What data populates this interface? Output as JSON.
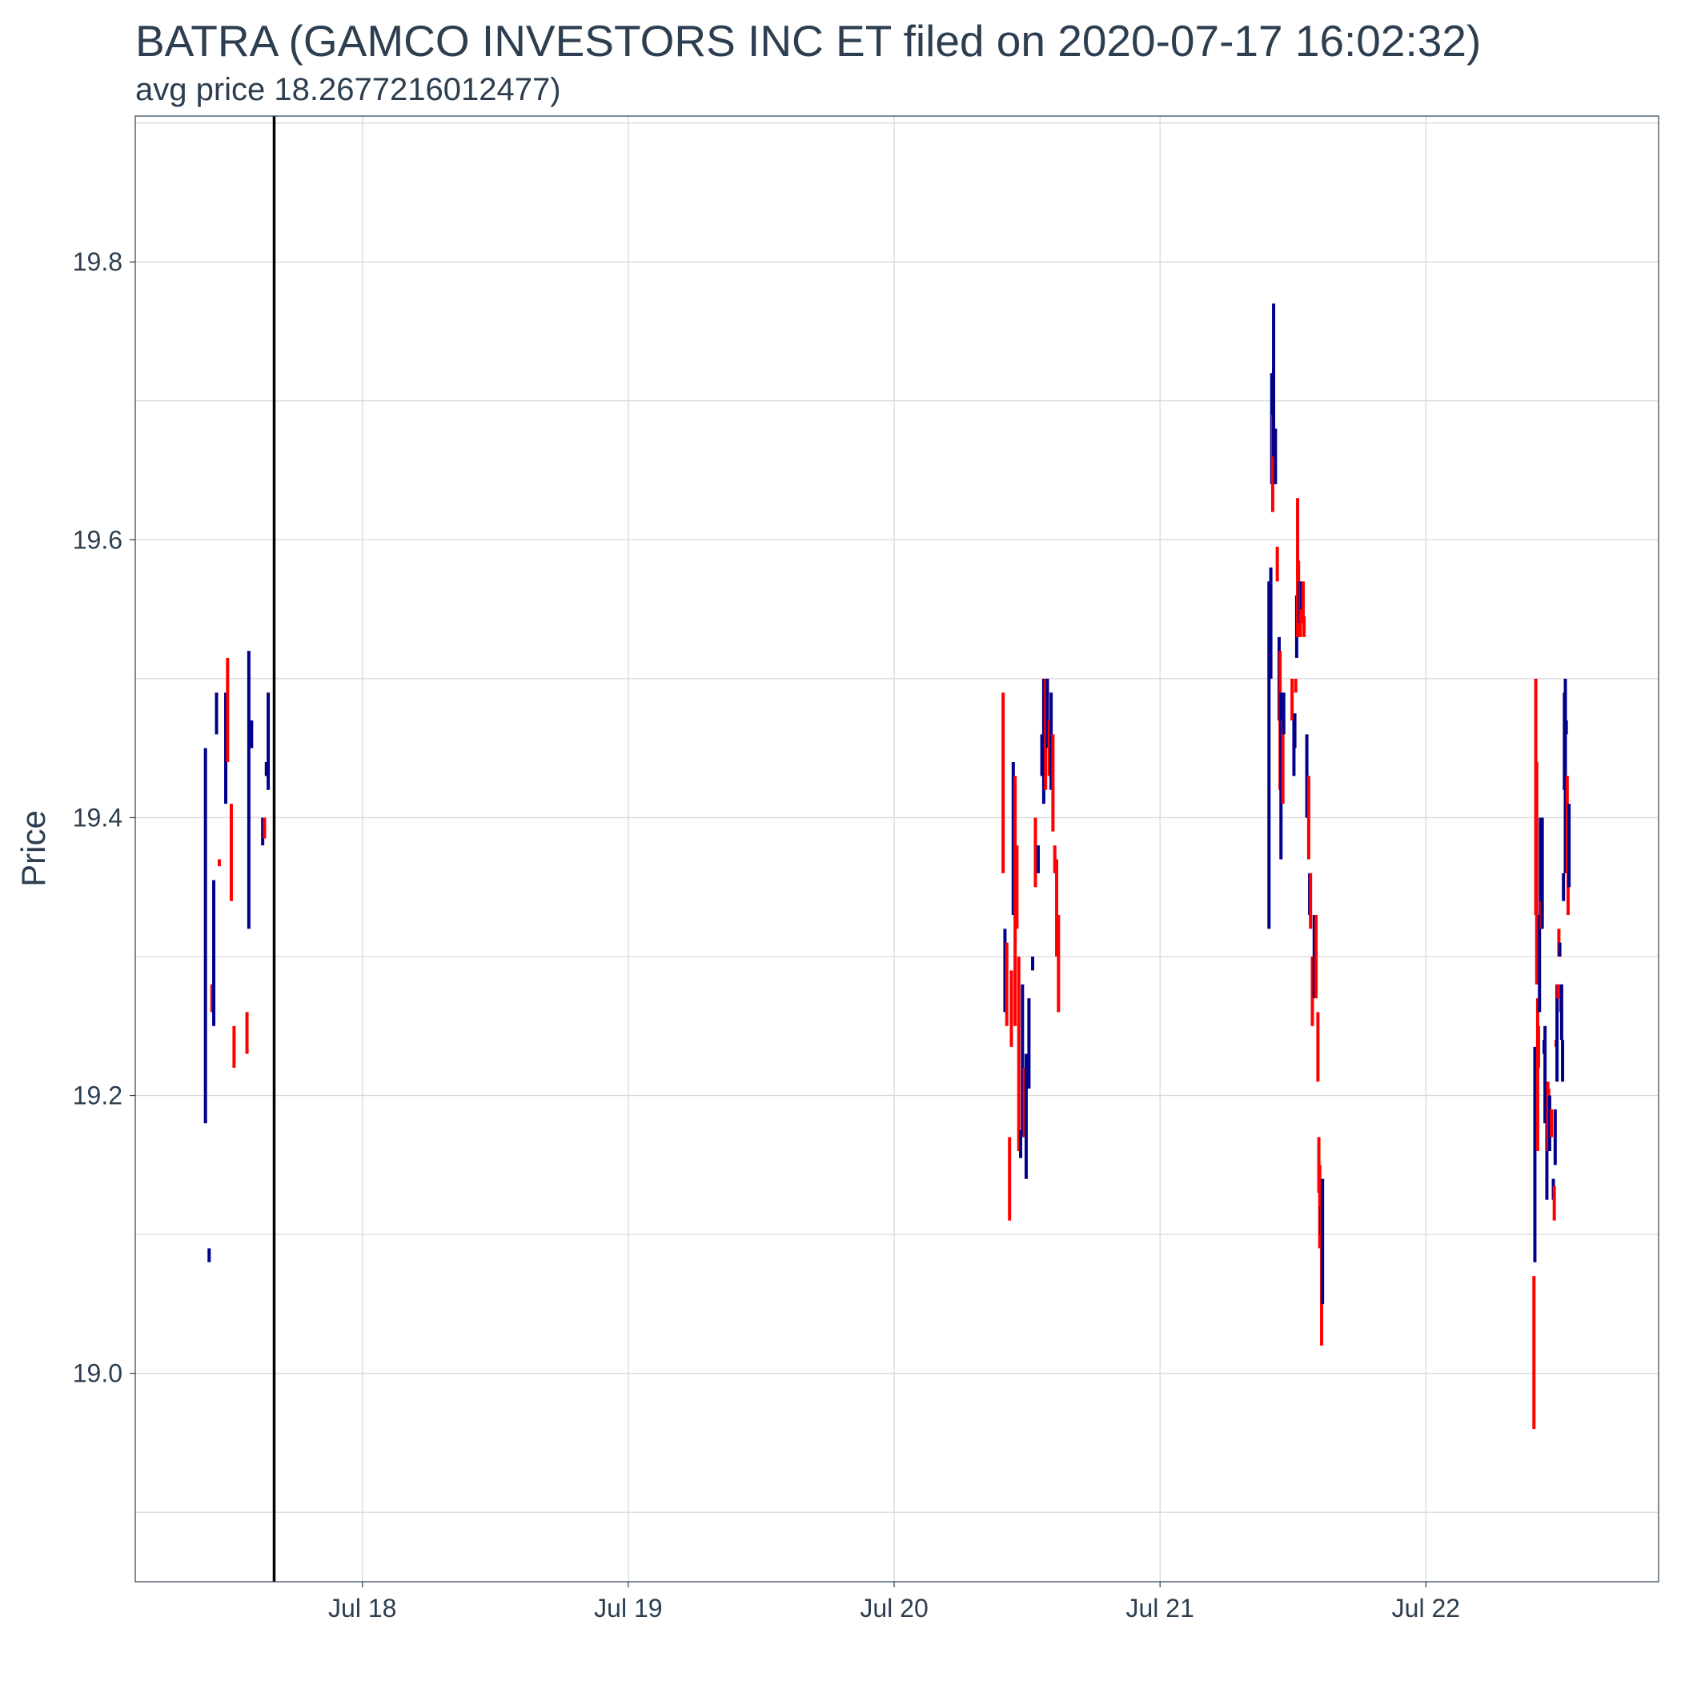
{
  "chart_data": {
    "type": "ohlc",
    "title": "BATRA (GAMCO INVESTORS  INC ET filed on 2020-07-17 16:02:32)",
    "subtitle": "avg price 18.2677216012477)",
    "xlabel": "",
    "ylabel": "Price",
    "x_axis": {
      "type": "date",
      "range": [
        "2020-07-17T03:30",
        "2020-07-22T21:00"
      ],
      "tick_labels": [
        "Jul 18",
        "Jul 19",
        "Jul 20",
        "Jul 21",
        "Jul 22"
      ],
      "ticks": [
        "2020-07-18",
        "2020-07-19",
        "2020-07-20",
        "2020-07-21",
        "2020-07-22"
      ]
    },
    "y_axis": {
      "range": [
        18.85,
        19.905
      ],
      "ticks": [
        19.0,
        19.2,
        19.4,
        19.6,
        19.8
      ],
      "tick_labels": [
        "19.0",
        "19.2",
        "19.4",
        "19.6",
        "19.8"
      ]
    },
    "grid": true,
    "filing_marker": {
      "datetime": "2020-07-17T16:02",
      "color": "#000000"
    },
    "colors": {
      "up": "#00008b",
      "down": "#ff0000",
      "grid": "#d9d9d9",
      "text": "#2c3e50"
    },
    "candles": [
      {
        "t": "2020-07-17T09:50",
        "lo": 19.18,
        "hi": 19.45,
        "dir": "up"
      },
      {
        "t": "2020-07-17T10:10",
        "lo": 19.08,
        "hi": 19.09,
        "dir": "up"
      },
      {
        "t": "2020-07-17T10:25",
        "lo": 19.26,
        "hi": 19.28,
        "dir": "down"
      },
      {
        "t": "2020-07-17T10:35",
        "lo": 19.25,
        "hi": 19.355,
        "dir": "up"
      },
      {
        "t": "2020-07-17T10:50",
        "lo": 19.46,
        "hi": 19.49,
        "dir": "up"
      },
      {
        "t": "2020-07-17T11:05",
        "lo": 19.365,
        "hi": 19.37,
        "dir": "down"
      },
      {
        "t": "2020-07-17T11:40",
        "lo": 19.41,
        "hi": 19.49,
        "dir": "up"
      },
      {
        "t": "2020-07-17T11:50",
        "lo": 19.44,
        "hi": 19.515,
        "dir": "down"
      },
      {
        "t": "2020-07-17T12:10",
        "lo": 19.34,
        "hi": 19.41,
        "dir": "down"
      },
      {
        "t": "2020-07-17T12:25",
        "lo": 19.22,
        "hi": 19.25,
        "dir": "down"
      },
      {
        "t": "2020-07-17T13:35",
        "lo": 19.23,
        "hi": 19.26,
        "dir": "down"
      },
      {
        "t": "2020-07-17T13:45",
        "lo": 19.32,
        "hi": 19.52,
        "dir": "up"
      },
      {
        "t": "2020-07-17T14:00",
        "lo": 19.45,
        "hi": 19.47,
        "dir": "up"
      },
      {
        "t": "2020-07-17T15:00",
        "lo": 19.38,
        "hi": 19.4,
        "dir": "up"
      },
      {
        "t": "2020-07-17T15:10",
        "lo": 19.385,
        "hi": 19.4,
        "dir": "down"
      },
      {
        "t": "2020-07-17T15:20",
        "lo": 19.43,
        "hi": 19.44,
        "dir": "up"
      },
      {
        "t": "2020-07-17T15:30",
        "lo": 19.42,
        "hi": 19.49,
        "dir": "up"
      },
      {
        "t": "2020-07-20T09:50",
        "lo": 19.36,
        "hi": 19.49,
        "dir": "down"
      },
      {
        "t": "2020-07-20T10:00",
        "lo": 19.26,
        "hi": 19.32,
        "dir": "up"
      },
      {
        "t": "2020-07-20T10:10",
        "lo": 19.25,
        "hi": 19.31,
        "dir": "down"
      },
      {
        "t": "2020-07-20T10:25",
        "lo": 19.11,
        "hi": 19.17,
        "dir": "down"
      },
      {
        "t": "2020-07-20T10:35",
        "lo": 19.235,
        "hi": 19.29,
        "dir": "down"
      },
      {
        "t": "2020-07-20T10:45",
        "lo": 19.33,
        "hi": 19.44,
        "dir": "up"
      },
      {
        "t": "2020-07-20T10:55",
        "lo": 19.25,
        "hi": 19.43,
        "dir": "down"
      },
      {
        "t": "2020-07-20T11:05",
        "lo": 19.32,
        "hi": 19.38,
        "dir": "down"
      },
      {
        "t": "2020-07-20T11:15",
        "lo": 19.16,
        "hi": 19.3,
        "dir": "down"
      },
      {
        "t": "2020-07-20T11:25",
        "lo": 19.155,
        "hi": 19.175,
        "dir": "up"
      },
      {
        "t": "2020-07-20T11:35",
        "lo": 19.17,
        "hi": 19.28,
        "dir": "up"
      },
      {
        "t": "2020-07-20T11:45",
        "lo": 19.17,
        "hi": 19.22,
        "dir": "down"
      },
      {
        "t": "2020-07-20T11:55",
        "lo": 19.14,
        "hi": 19.23,
        "dir": "up"
      },
      {
        "t": "2020-07-20T12:10",
        "lo": 19.205,
        "hi": 19.27,
        "dir": "up"
      },
      {
        "t": "2020-07-20T12:30",
        "lo": 19.29,
        "hi": 19.3,
        "dir": "up"
      },
      {
        "t": "2020-07-20T12:45",
        "lo": 19.35,
        "hi": 19.4,
        "dir": "down"
      },
      {
        "t": "2020-07-20T13:00",
        "lo": 19.36,
        "hi": 19.38,
        "dir": "up"
      },
      {
        "t": "2020-07-20T13:20",
        "lo": 19.43,
        "hi": 19.46,
        "dir": "up"
      },
      {
        "t": "2020-07-20T13:30",
        "lo": 19.41,
        "hi": 19.5,
        "dir": "up"
      },
      {
        "t": "2020-07-20T13:40",
        "lo": 19.42,
        "hi": 19.5,
        "dir": "down"
      },
      {
        "t": "2020-07-20T13:50",
        "lo": 19.45,
        "hi": 19.5,
        "dir": "up"
      },
      {
        "t": "2020-07-20T14:00",
        "lo": 19.43,
        "hi": 19.47,
        "dir": "down"
      },
      {
        "t": "2020-07-20T14:10",
        "lo": 19.42,
        "hi": 19.49,
        "dir": "up"
      },
      {
        "t": "2020-07-20T14:20",
        "lo": 19.39,
        "hi": 19.46,
        "dir": "down"
      },
      {
        "t": "2020-07-20T14:30",
        "lo": 19.36,
        "hi": 19.38,
        "dir": "down"
      },
      {
        "t": "2020-07-20T14:40",
        "lo": 19.3,
        "hi": 19.37,
        "dir": "down"
      },
      {
        "t": "2020-07-20T14:50",
        "lo": 19.26,
        "hi": 19.33,
        "dir": "down"
      },
      {
        "t": "2020-07-21T09:50",
        "lo": 19.32,
        "hi": 19.57,
        "dir": "up"
      },
      {
        "t": "2020-07-21T10:00",
        "lo": 19.5,
        "hi": 19.58,
        "dir": "up"
      },
      {
        "t": "2020-07-21T10:05",
        "lo": 19.64,
        "hi": 19.72,
        "dir": "up"
      },
      {
        "t": "2020-07-21T10:10",
        "lo": 19.62,
        "hi": 19.69,
        "dir": "down"
      },
      {
        "t": "2020-07-21T10:15",
        "lo": 19.66,
        "hi": 19.77,
        "dir": "up"
      },
      {
        "t": "2020-07-21T10:25",
        "lo": 19.64,
        "hi": 19.68,
        "dir": "up"
      },
      {
        "t": "2020-07-21T10:35",
        "lo": 19.57,
        "hi": 19.595,
        "dir": "down"
      },
      {
        "t": "2020-07-21T10:45",
        "lo": 19.47,
        "hi": 19.53,
        "dir": "up"
      },
      {
        "t": "2020-07-21T10:50",
        "lo": 19.42,
        "hi": 19.52,
        "dir": "down"
      },
      {
        "t": "2020-07-21T10:55",
        "lo": 19.37,
        "hi": 19.49,
        "dir": "up"
      },
      {
        "t": "2020-07-21T11:05",
        "lo": 19.41,
        "hi": 19.47,
        "dir": "down"
      },
      {
        "t": "2020-07-21T11:10",
        "lo": 19.46,
        "hi": 19.49,
        "dir": "up"
      },
      {
        "t": "2020-07-21T11:55",
        "lo": 19.47,
        "hi": 19.5,
        "dir": "down"
      },
      {
        "t": "2020-07-21T12:05",
        "lo": 19.43,
        "hi": 19.47,
        "dir": "up"
      },
      {
        "t": "2020-07-21T12:10",
        "lo": 19.45,
        "hi": 19.475,
        "dir": "up"
      },
      {
        "t": "2020-07-21T12:15",
        "lo": 19.49,
        "hi": 19.5,
        "dir": "down"
      },
      {
        "t": "2020-07-21T12:20",
        "lo": 19.515,
        "hi": 19.56,
        "dir": "up"
      },
      {
        "t": "2020-07-21T12:25",
        "lo": 19.53,
        "hi": 19.63,
        "dir": "down"
      },
      {
        "t": "2020-07-21T12:30",
        "lo": 19.55,
        "hi": 19.585,
        "dir": "down"
      },
      {
        "t": "2020-07-21T12:35",
        "lo": 19.54,
        "hi": 19.57,
        "dir": "up"
      },
      {
        "t": "2020-07-21T12:40",
        "lo": 19.53,
        "hi": 19.57,
        "dir": "down"
      },
      {
        "t": "2020-07-21T12:45",
        "lo": 19.55,
        "hi": 19.57,
        "dir": "up"
      },
      {
        "t": "2020-07-21T12:55",
        "lo": 19.54,
        "hi": 19.57,
        "dir": "down"
      },
      {
        "t": "2020-07-21T13:00",
        "lo": 19.53,
        "hi": 19.545,
        "dir": "down"
      },
      {
        "t": "2020-07-21T13:15",
        "lo": 19.4,
        "hi": 19.46,
        "dir": "up"
      },
      {
        "t": "2020-07-21T13:25",
        "lo": 19.37,
        "hi": 19.43,
        "dir": "down"
      },
      {
        "t": "2020-07-21T13:30",
        "lo": 19.33,
        "hi": 19.36,
        "dir": "up"
      },
      {
        "t": "2020-07-21T13:35",
        "lo": 19.32,
        "hi": 19.36,
        "dir": "down"
      },
      {
        "t": "2020-07-21T13:45",
        "lo": 19.25,
        "hi": 19.3,
        "dir": "down"
      },
      {
        "t": "2020-07-21T13:55",
        "lo": 19.27,
        "hi": 19.33,
        "dir": "up"
      },
      {
        "t": "2020-07-21T14:05",
        "lo": 19.27,
        "hi": 19.33,
        "dir": "down"
      },
      {
        "t": "2020-07-21T14:15",
        "lo": 19.21,
        "hi": 19.26,
        "dir": "down"
      },
      {
        "t": "2020-07-21T14:20",
        "lo": 19.13,
        "hi": 19.17,
        "dir": "down"
      },
      {
        "t": "2020-07-21T14:25",
        "lo": 19.09,
        "hi": 19.15,
        "dir": "down"
      },
      {
        "t": "2020-07-21T14:30",
        "lo": 19.1,
        "hi": 19.12,
        "dir": "up"
      },
      {
        "t": "2020-07-21T14:35",
        "lo": 19.02,
        "hi": 19.12,
        "dir": "down"
      },
      {
        "t": "2020-07-21T14:40",
        "lo": 19.05,
        "hi": 19.14,
        "dir": "up"
      },
      {
        "t": "2020-07-22T09:45",
        "lo": 18.96,
        "hi": 19.07,
        "dir": "down"
      },
      {
        "t": "2020-07-22T09:50",
        "lo": 19.08,
        "hi": 19.235,
        "dir": "up"
      },
      {
        "t": "2020-07-22T09:55",
        "lo": 19.33,
        "hi": 19.5,
        "dir": "down"
      },
      {
        "t": "2020-07-22T10:00",
        "lo": 19.28,
        "hi": 19.44,
        "dir": "down"
      },
      {
        "t": "2020-07-22T10:05",
        "lo": 19.16,
        "hi": 19.27,
        "dir": "down"
      },
      {
        "t": "2020-07-22T10:10",
        "lo": 19.22,
        "hi": 19.25,
        "dir": "down"
      },
      {
        "t": "2020-07-22T10:15",
        "lo": 19.26,
        "hi": 19.33,
        "dir": "up"
      },
      {
        "t": "2020-07-22T10:20",
        "lo": 19.33,
        "hi": 19.4,
        "dir": "up"
      },
      {
        "t": "2020-07-22T10:25",
        "lo": 19.32,
        "hi": 19.34,
        "dir": "down"
      },
      {
        "t": "2020-07-22T10:30",
        "lo": 19.32,
        "hi": 19.4,
        "dir": "up"
      },
      {
        "t": "2020-07-22T10:40",
        "lo": 19.23,
        "hi": 19.24,
        "dir": "up"
      },
      {
        "t": "2020-07-22T10:45",
        "lo": 19.18,
        "hi": 19.25,
        "dir": "up"
      },
      {
        "t": "2020-07-22T10:55",
        "lo": 19.125,
        "hi": 19.18,
        "dir": "up"
      },
      {
        "t": "2020-07-22T11:00",
        "lo": 19.16,
        "hi": 19.21,
        "dir": "down"
      },
      {
        "t": "2020-07-22T11:05",
        "lo": 19.16,
        "hi": 19.205,
        "dir": "down"
      },
      {
        "t": "2020-07-22T11:10",
        "lo": 19.16,
        "hi": 19.2,
        "dir": "up"
      },
      {
        "t": "2020-07-22T11:20",
        "lo": 19.17,
        "hi": 19.19,
        "dir": "down"
      },
      {
        "t": "2020-07-22T11:30",
        "lo": 19.125,
        "hi": 19.14,
        "dir": "up"
      },
      {
        "t": "2020-07-22T11:35",
        "lo": 19.11,
        "hi": 19.135,
        "dir": "down"
      },
      {
        "t": "2020-07-22T11:40",
        "lo": 19.15,
        "hi": 19.19,
        "dir": "up"
      },
      {
        "t": "2020-07-22T11:45",
        "lo": 19.235,
        "hi": 19.24,
        "dir": "down"
      },
      {
        "t": "2020-07-22T11:50",
        "lo": 19.21,
        "hi": 19.28,
        "dir": "up"
      },
      {
        "t": "2020-07-22T11:55",
        "lo": 19.27,
        "hi": 19.28,
        "dir": "down"
      },
      {
        "t": "2020-07-22T12:00",
        "lo": 19.3,
        "hi": 19.32,
        "dir": "down"
      },
      {
        "t": "2020-07-22T12:05",
        "lo": 19.3,
        "hi": 19.31,
        "dir": "up"
      },
      {
        "t": "2020-07-22T12:10",
        "lo": 19.26,
        "hi": 19.28,
        "dir": "down"
      },
      {
        "t": "2020-07-22T12:15",
        "lo": 19.24,
        "hi": 19.28,
        "dir": "up"
      },
      {
        "t": "2020-07-22T12:20",
        "lo": 19.21,
        "hi": 19.24,
        "dir": "up"
      },
      {
        "t": "2020-07-22T12:25",
        "lo": 19.34,
        "hi": 19.36,
        "dir": "up"
      },
      {
        "t": "2020-07-22T12:30",
        "lo": 19.42,
        "hi": 19.49,
        "dir": "up"
      },
      {
        "t": "2020-07-22T12:35",
        "lo": 19.36,
        "hi": 19.5,
        "dir": "up"
      },
      {
        "t": "2020-07-22T12:40",
        "lo": 19.46,
        "hi": 19.47,
        "dir": "up"
      },
      {
        "t": "2020-07-22T12:45",
        "lo": 19.36,
        "hi": 19.43,
        "dir": "down"
      },
      {
        "t": "2020-07-22T12:50",
        "lo": 19.33,
        "hi": 19.4,
        "dir": "down"
      },
      {
        "t": "2020-07-22T12:55",
        "lo": 19.35,
        "hi": 19.41,
        "dir": "up"
      }
    ]
  }
}
